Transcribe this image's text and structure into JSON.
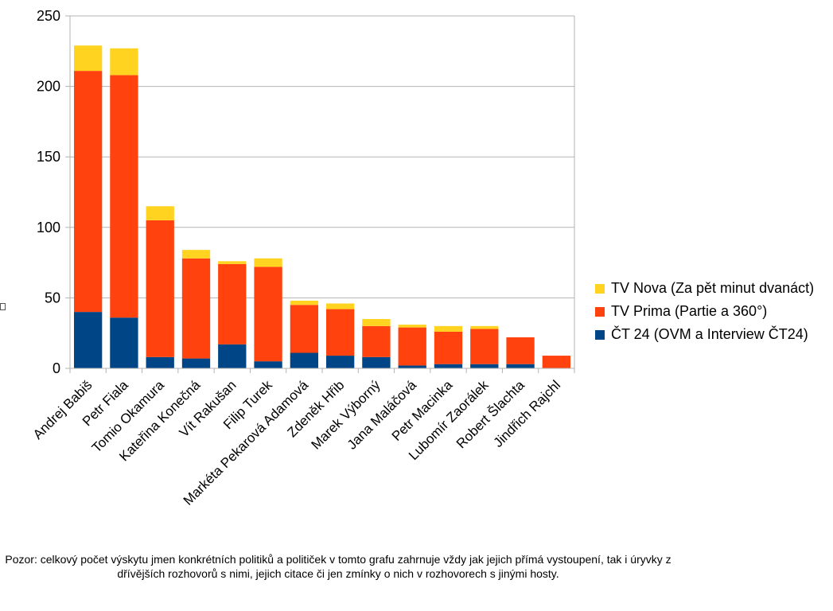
{
  "chart_data": {
    "type": "bar",
    "stacked": true,
    "categories": [
      "Andrej Babiš",
      "Petr Fiala",
      "Tomio Okamura",
      "Kateřina  Konečná",
      "Vít Rakušan",
      "Filip Turek",
      "Markéta Pekarová Adamová",
      "Zdeněk Hřib",
      "Marek Výborný",
      "Jana Maláčová",
      "Petr Macinka",
      "Lubomír Zaorálek",
      "Robert Šlachta",
      "Jindřich Rajchl"
    ],
    "series": [
      {
        "name": "ČT 24 (OVM a Interview ČT24)",
        "color": "#004586",
        "values": [
          40,
          36,
          8,
          7,
          17,
          5,
          11,
          9,
          8,
          2,
          3,
          3,
          3,
          0
        ]
      },
      {
        "name": "TV Prima (Partie a 360°)",
        "color": "#ff420e",
        "values": [
          171,
          172,
          97,
          71,
          57,
          67,
          34,
          33,
          22,
          27,
          23,
          25,
          19,
          9
        ]
      },
      {
        "name": "TV Nova (Za pět minut dvanáct)",
        "color": "#ffd320",
        "values": [
          18,
          19,
          10,
          6,
          2,
          6,
          3,
          4,
          5,
          2,
          4,
          2,
          0,
          0
        ]
      }
    ],
    "legend_order": [
      "TV Nova (Za pět minut dvanáct)",
      "TV Prima (Partie a 360°)",
      "ČT 24 (OVM a Interview ČT24)"
    ],
    "ylim": [
      0,
      250
    ],
    "yticks": [
      0,
      50,
      100,
      150,
      200,
      250
    ],
    "grid": true,
    "legend_position": "right",
    "title": "",
    "xlabel": "",
    "ylabel": ""
  },
  "footnote": "Pozor: celkový počet výskytu jmen konkrétních politiků a političek v tomto grafu zahrnuje vždy jak jejich přímá vystoupení, tak i úryvky z dřívějších rozhovorů s nimi, jejich citace či jen zmínky o nich v rozhovorech s jinými hosty."
}
